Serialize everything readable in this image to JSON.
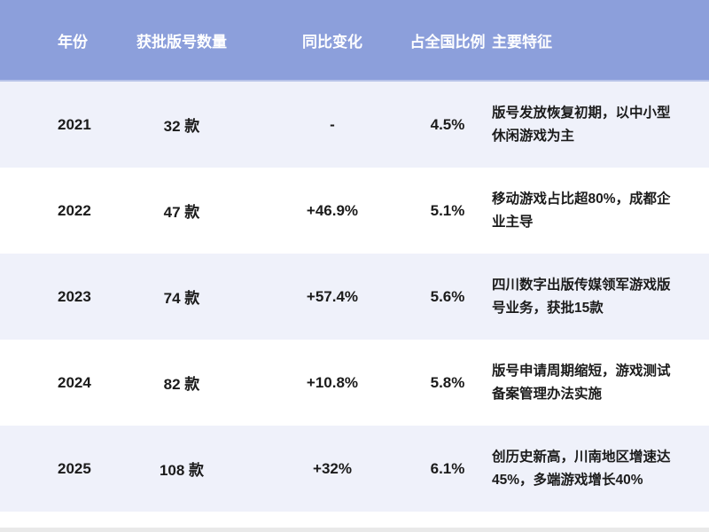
{
  "colors": {
    "header_bg": "#8c9fdb",
    "header_bg_edge": "#b7c3e8",
    "header_text": "#ffffff",
    "row_bg": "#ffffff",
    "row_alt_bg": "#eff1fa",
    "body_text": "#1b1b1b",
    "footer_strip": "#e9e9e9"
  },
  "chart_data": {
    "type": "table",
    "columns": [
      "年份",
      "获批版号数量",
      "同比变化",
      "占全国比例",
      "主要特征"
    ],
    "rows": [
      [
        "2021",
        "32 款",
        "-",
        "4.5%",
        "版号发放恢复初期，以中小型休闲游戏为主"
      ],
      [
        "2022",
        "47 款",
        "+46.9%",
        "5.1%",
        "移动游戏占比超80%，成都企业主导"
      ],
      [
        "2023",
        "74 款",
        "+57.4%",
        "5.6%",
        "四川数字出版传媒领军游戏版号业务，获批15款"
      ],
      [
        "2024",
        "82 款",
        "+10.8%",
        "5.8%",
        "版号申请周期缩短，游戏测试备案管理办法实施"
      ],
      [
        "2025",
        "108 款",
        "+32%",
        "6.1%",
        "创历史新高，川南地区增速达45%，多端游戏增长40%"
      ]
    ]
  }
}
